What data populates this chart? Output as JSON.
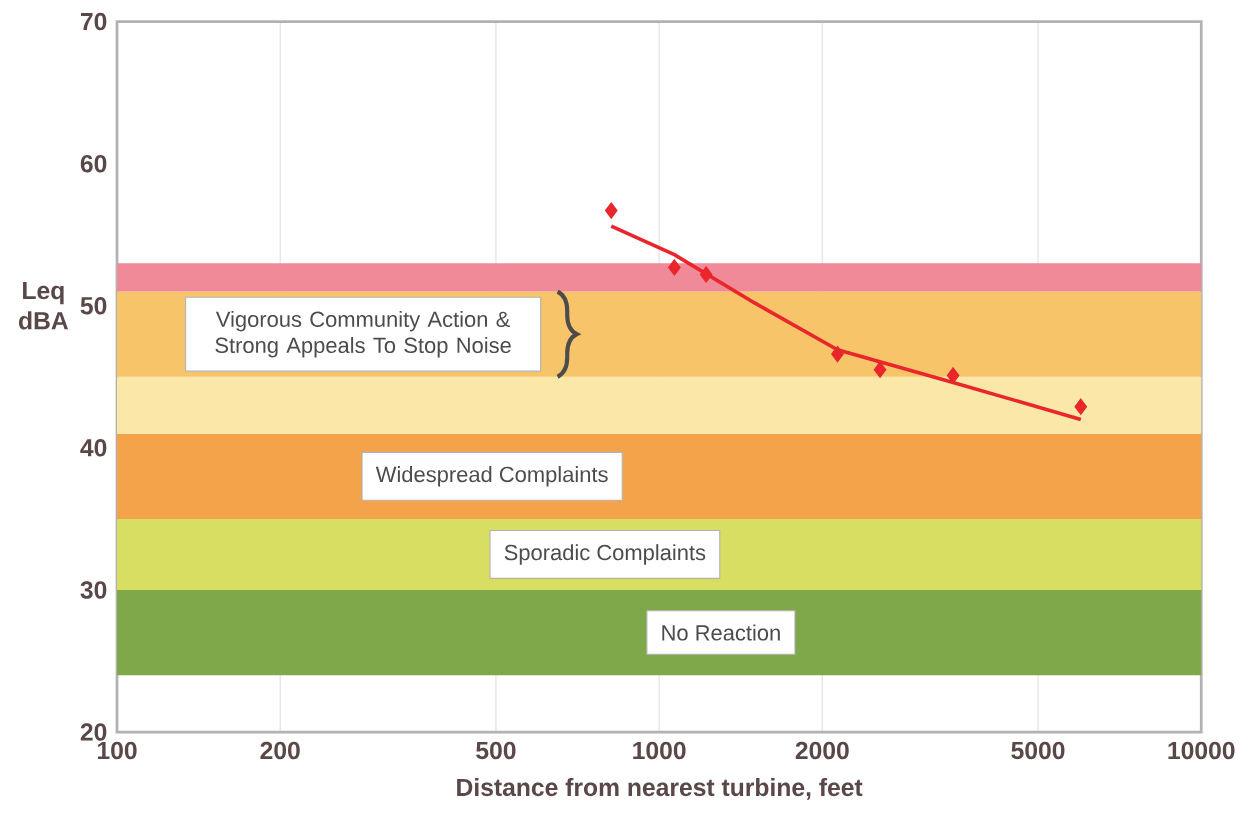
{
  "chart_data": {
    "type": "scatter",
    "xlabel": "Distance from nearest turbine, feet",
    "ylabel": "Leq dBA",
    "log": "x",
    "xlim": [
      100,
      10000
    ],
    "ylim": [
      20,
      70
    ],
    "xticks": [
      100,
      200,
      500,
      1000,
      2000,
      5000,
      10000
    ],
    "yticks": [
      20,
      30,
      40,
      50,
      60,
      70
    ],
    "grid": "x",
    "series": [
      {
        "marker": "diamond",
        "color": "#e8262b",
        "x": [
          816,
          1067,
          1221,
          2133,
          2556,
          3486,
          5996
        ],
        "values": [
          56.7,
          52.7,
          52.2,
          46.6,
          45.5,
          45.1,
          42.9
        ]
      },
      {
        "type": "line",
        "marker": "none",
        "color": "#e8262b",
        "x": [
          816,
          1067,
          1500,
          2133,
          3486,
          5996
        ],
        "values": [
          55.6,
          53.6,
          50.2,
          46.9,
          44.6,
          42.0
        ]
      }
    ],
    "bands": [
      {
        "axis": "y",
        "from": 24,
        "to": 30,
        "label": "No Reaction",
        "color": "#7fa84a"
      },
      {
        "axis": "y",
        "from": 30,
        "to": 35,
        "label": "Sporadic Complaints",
        "color": "#d8de62"
      },
      {
        "axis": "y",
        "from": 35,
        "to": 41,
        "label": "Widespread Complaints",
        "color": "#f5a34a"
      },
      {
        "axis": "y",
        "from": 41,
        "to": 45,
        "color": "#fbe7a8"
      },
      {
        "axis": "y",
        "from": 45,
        "to": 51,
        "label": "Vigorous Community Action & Strong Appeals To Stop Noise",
        "color": "#f7c46a"
      },
      {
        "axis": "y",
        "from": 51,
        "to": 53,
        "color": "#f08a98"
      }
    ]
  }
}
